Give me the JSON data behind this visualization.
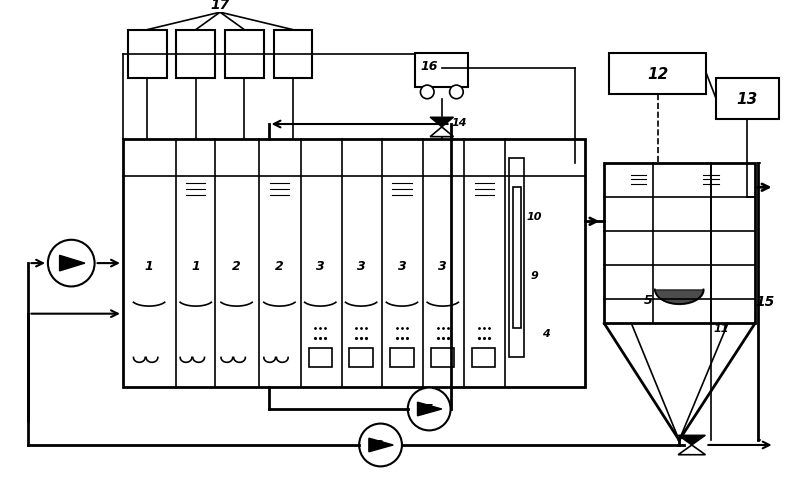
{
  "bg_color": "#ffffff",
  "line_color": "#000000",
  "fig_width": 8.0,
  "fig_height": 4.81
}
